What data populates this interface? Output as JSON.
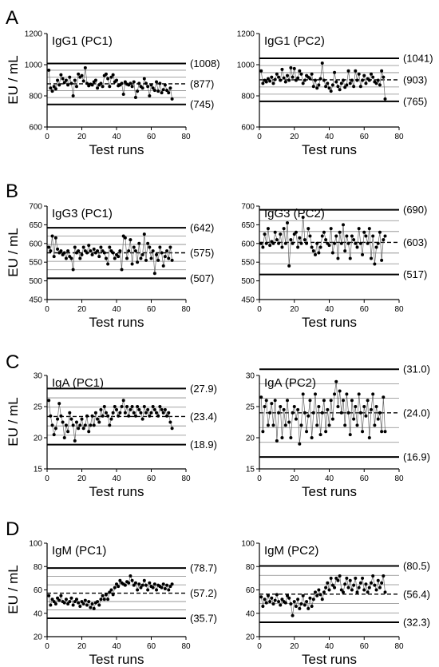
{
  "panels": [
    {
      "letter": "A",
      "ylabel": "EU / mL"
    },
    {
      "letter": "B",
      "ylabel": "EU / mL"
    },
    {
      "letter": "C",
      "ylabel": "EU / mL"
    },
    {
      "letter": "D",
      "ylabel": "EU / mL"
    }
  ],
  "chart_data": [
    {
      "type": "line",
      "panel": "A",
      "title": "IgG1 (PC1)",
      "xlabel": "Test runs",
      "xlim": [
        0,
        80
      ],
      "ylim": [
        600,
        1200
      ],
      "xticks": [
        0,
        20,
        40,
        60,
        80
      ],
      "yticks": [
        600,
        800,
        1000,
        1200
      ],
      "upper_limit": 1008,
      "mean": 877,
      "lower_limit": 745,
      "limit_labels": [
        "(1008)",
        "(877)",
        "(745)"
      ],
      "x": [
        1,
        2,
        3,
        4,
        5,
        6,
        7,
        8,
        9,
        10,
        11,
        12,
        13,
        14,
        15,
        16,
        17,
        18,
        19,
        20,
        21,
        22,
        23,
        24,
        25,
        26,
        27,
        28,
        29,
        30,
        31,
        32,
        33,
        34,
        35,
        36,
        37,
        38,
        39,
        40,
        41,
        42,
        43,
        44,
        45,
        46,
        47,
        48,
        49,
        50,
        51,
        52,
        53,
        54,
        55,
        56,
        57,
        58,
        59,
        60,
        61,
        62,
        63,
        64,
        65,
        66,
        67,
        68,
        69,
        70,
        71,
        72
      ],
      "y": [
        965,
        850,
        830,
        860,
        845,
        900,
        870,
        935,
        910,
        885,
        900,
        870,
        920,
        880,
        800,
        900,
        860,
        940,
        920,
        930,
        895,
        980,
        880,
        865,
        875,
        870,
        890,
        900,
        850,
        870,
        880,
        860,
        930,
        940,
        910,
        860,
        920,
        935,
        890,
        900,
        865,
        870,
        880,
        810,
        890,
        875,
        870,
        880,
        860,
        890,
        790,
        830,
        880,
        860,
        850,
        910,
        880,
        860,
        800,
        870,
        850,
        835,
        890,
        830,
        880,
        820,
        840,
        870,
        835,
        820,
        850,
        780
      ]
    },
    {
      "type": "line",
      "panel": "A",
      "title": "IgG1 (PC2)",
      "xlabel": "Test runs",
      "xlim": [
        0,
        80
      ],
      "ylim": [
        600,
        1200
      ],
      "xticks": [
        0,
        20,
        40,
        60,
        80
      ],
      "yticks": [
        600,
        800,
        1000,
        1200
      ],
      "upper_limit": 1041,
      "mean": 903,
      "lower_limit": 765,
      "limit_labels": [
        "(1041)",
        "(903)",
        "(765)"
      ],
      "x": [
        1,
        2,
        3,
        4,
        5,
        6,
        7,
        8,
        9,
        10,
        11,
        12,
        13,
        14,
        15,
        16,
        17,
        18,
        19,
        20,
        21,
        22,
        23,
        24,
        25,
        26,
        27,
        28,
        29,
        30,
        31,
        32,
        33,
        34,
        35,
        36,
        37,
        38,
        39,
        40,
        41,
        42,
        43,
        44,
        45,
        46,
        47,
        48,
        49,
        50,
        51,
        52,
        53,
        54,
        55,
        56,
        57,
        58,
        59,
        60,
        61,
        62,
        63,
        64,
        65,
        66,
        67,
        68,
        69,
        70,
        71,
        72
      ],
      "y": [
        960,
        880,
        900,
        890,
        910,
        895,
        920,
        880,
        905,
        940,
        920,
        900,
        970,
        915,
        890,
        930,
        900,
        980,
        920,
        975,
        900,
        915,
        960,
        940,
        880,
        900,
        930,
        920,
        910,
        940,
        860,
        900,
        850,
        870,
        910,
        1010,
        900,
        860,
        880,
        850,
        830,
        870,
        950,
        890,
        860,
        840,
        880,
        900,
        855,
        870,
        960,
        880,
        900,
        860,
        960,
        900,
        940,
        860,
        900,
        930,
        880,
        910,
        900,
        940,
        920,
        890,
        880,
        900,
        870,
        960,
        920,
        780
      ]
    },
    {
      "type": "line",
      "panel": "B",
      "title": "IgG3 (PC1)",
      "xlabel": "Test runs",
      "xlim": [
        0,
        80
      ],
      "ylim": [
        450,
        700
      ],
      "xticks": [
        0,
        20,
        40,
        60,
        80
      ],
      "yticks": [
        450,
        500,
        550,
        600,
        650,
        700
      ],
      "upper_limit": 642,
      "mean": 575,
      "lower_limit": 507,
      "limit_labels": [
        "(642)",
        "(575)",
        "(507)"
      ],
      "x": [
        1,
        2,
        3,
        4,
        5,
        6,
        7,
        8,
        9,
        10,
        11,
        12,
        13,
        14,
        15,
        16,
        17,
        18,
        19,
        20,
        21,
        22,
        23,
        24,
        25,
        26,
        27,
        28,
        29,
        30,
        31,
        32,
        33,
        34,
        35,
        36,
        37,
        38,
        39,
        40,
        41,
        42,
        43,
        44,
        45,
        46,
        47,
        48,
        49,
        50,
        51,
        52,
        53,
        54,
        55,
        56,
        57,
        58,
        59,
        60,
        61,
        62,
        63,
        64,
        65,
        66,
        67,
        68,
        69,
        70,
        71,
        72
      ],
      "y": [
        590,
        580,
        620,
        565,
        615,
        585,
        575,
        580,
        570,
        575,
        560,
        580,
        565,
        560,
        530,
        590,
        575,
        580,
        560,
        570,
        590,
        580,
        575,
        595,
        580,
        570,
        585,
        575,
        580,
        565,
        590,
        580,
        575,
        560,
        545,
        590,
        580,
        575,
        560,
        570,
        565,
        580,
        530,
        620,
        615,
        560,
        580,
        610,
        545,
        590,
        580,
        550,
        600,
        560,
        570,
        625,
        555,
        600,
        590,
        560,
        580,
        520,
        570,
        555,
        590,
        575,
        540,
        565,
        580,
        560,
        590,
        555
      ]
    },
    {
      "type": "line",
      "panel": "B",
      "title": "IgG3 (PC2)",
      "xlabel": "Test runs",
      "xlim": [
        0,
        80
      ],
      "ylim": [
        450,
        700
      ],
      "xticks": [
        0,
        20,
        40,
        60,
        80
      ],
      "yticks": [
        450,
        500,
        550,
        600,
        650,
        700
      ],
      "upper_limit": 690,
      "mean": 603,
      "lower_limit": 517,
      "limit_labels": [
        "(690)",
        "(603)",
        "(517)"
      ],
      "x": [
        1,
        2,
        3,
        4,
        5,
        6,
        7,
        8,
        9,
        10,
        11,
        12,
        13,
        14,
        15,
        16,
        17,
        18,
        19,
        20,
        21,
        22,
        23,
        24,
        25,
        26,
        27,
        28,
        29,
        30,
        31,
        32,
        33,
        34,
        35,
        36,
        37,
        38,
        39,
        40,
        41,
        42,
        43,
        44,
        45,
        46,
        47,
        48,
        49,
        50,
        51,
        52,
        53,
        54,
        55,
        56,
        57,
        58,
        59,
        60,
        61,
        62,
        63,
        64,
        65,
        66,
        67,
        68,
        69,
        70,
        71,
        72
      ],
      "y": [
        600,
        590,
        625,
        600,
        640,
        595,
        605,
        600,
        630,
        610,
        600,
        625,
        590,
        640,
        600,
        655,
        540,
        610,
        600,
        625,
        630,
        590,
        615,
        600,
        670,
        610,
        600,
        640,
        620,
        590,
        580,
        570,
        600,
        575,
        590,
        620,
        630,
        610,
        600,
        595,
        640,
        575,
        600,
        620,
        560,
        630,
        600,
        650,
        580,
        620,
        600,
        560,
        620,
        610,
        600,
        590,
        640,
        600,
        570,
        630,
        620,
        600,
        640,
        560,
        620,
        545,
        590,
        600,
        630,
        555,
        610,
        620
      ]
    },
    {
      "type": "line",
      "panel": "C",
      "title": "IgA (PC1)",
      "xlabel": "Test runs",
      "xlim": [
        0,
        80
      ],
      "ylim": [
        15,
        30
      ],
      "xticks": [
        0,
        20,
        40,
        60,
        80
      ],
      "yticks": [
        15,
        20,
        25,
        30
      ],
      "upper_limit": 27.9,
      "mean": 23.4,
      "lower_limit": 18.9,
      "limit_labels": [
        "(27.9)",
        "(23.4)",
        "(18.9)"
      ],
      "x": [
        1,
        2,
        3,
        4,
        5,
        6,
        7,
        8,
        9,
        10,
        11,
        12,
        13,
        14,
        15,
        16,
        17,
        18,
        19,
        20,
        21,
        22,
        23,
        24,
        25,
        26,
        27,
        28,
        29,
        30,
        31,
        32,
        33,
        34,
        35,
        36,
        37,
        38,
        39,
        40,
        41,
        42,
        43,
        44,
        45,
        46,
        47,
        48,
        49,
        50,
        51,
        52,
        53,
        54,
        55,
        56,
        57,
        58,
        59,
        60,
        61,
        62,
        63,
        64,
        65,
        66,
        67,
        68,
        69,
        70,
        71,
        72
      ],
      "y": [
        26,
        23.5,
        22,
        20.5,
        21.5,
        23,
        25.5,
        23.5,
        22.5,
        20,
        22,
        21,
        24,
        23,
        22,
        19.5,
        22.5,
        21.5,
        22,
        23,
        21.5,
        22,
        23.5,
        21,
        22,
        23.5,
        22,
        24,
        23,
        22.5,
        24.5,
        23.5,
        25,
        24,
        23.5,
        22,
        23,
        24,
        25,
        24.5,
        23.5,
        24,
        25,
        26,
        24,
        25,
        23.5,
        24.5,
        25,
        24,
        23.5,
        25,
        24.5,
        24,
        23,
        25,
        24,
        24.5,
        23.5,
        24,
        25,
        24.5,
        24,
        23.5,
        25,
        24.5,
        24,
        24.5,
        23.5,
        24,
        22.5,
        21.5
      ]
    },
    {
      "type": "line",
      "panel": "C",
      "title": "IgA (PC2)",
      "xlabel": "Test runs",
      "xlim": [
        0,
        80
      ],
      "ylim": [
        15,
        30
      ],
      "xticks": [
        0,
        20,
        40,
        60,
        80
      ],
      "yticks": [
        15,
        20,
        25,
        30
      ],
      "upper_limit": 31.0,
      "mean": 24.0,
      "lower_limit": 16.9,
      "limit_labels": [
        "(31.0)",
        "(24.0)",
        "(16.9)"
      ],
      "x": [
        1,
        2,
        3,
        4,
        5,
        6,
        7,
        8,
        9,
        10,
        11,
        12,
        13,
        14,
        15,
        16,
        17,
        18,
        19,
        20,
        21,
        22,
        23,
        24,
        25,
        26,
        27,
        28,
        29,
        30,
        31,
        32,
        33,
        34,
        35,
        36,
        37,
        38,
        39,
        40,
        41,
        42,
        43,
        44,
        45,
        46,
        47,
        48,
        49,
        50,
        51,
        52,
        53,
        54,
        55,
        56,
        57,
        58,
        59,
        60,
        61,
        62,
        63,
        64,
        65,
        66,
        67,
        68,
        69,
        70,
        71,
        72
      ],
      "y": [
        26.5,
        21,
        25,
        26,
        22,
        24,
        25.5,
        22,
        26,
        19.5,
        24,
        25,
        20,
        24.5,
        22,
        26,
        22.5,
        20,
        24,
        25,
        23,
        24.5,
        19,
        22,
        27,
        24,
        21,
        23.5,
        26,
        20,
        24,
        27,
        22,
        25,
        20.5,
        24,
        26,
        21,
        24.5,
        22,
        26,
        23,
        27,
        29,
        25,
        27.5,
        24,
        26,
        22,
        27,
        24,
        20.5,
        26,
        23,
        25,
        22,
        27,
        24,
        21,
        25,
        23.5,
        26,
        20,
        24.5,
        27,
        22,
        25,
        23,
        24,
        21,
        26.5,
        21
      ]
    },
    {
      "type": "line",
      "panel": "D",
      "title": "IgM (PC1)",
      "xlabel": "Test runs",
      "xlim": [
        0,
        80
      ],
      "ylim": [
        20,
        100
      ],
      "xticks": [
        0,
        20,
        40,
        60,
        80
      ],
      "yticks": [
        20,
        40,
        60,
        80,
        100
      ],
      "upper_limit": 78.7,
      "mean": 57.2,
      "lower_limit": 35.7,
      "limit_labels": [
        "(78.7)",
        "(57.2)",
        "(35.7)"
      ],
      "x": [
        1,
        2,
        3,
        4,
        5,
        6,
        7,
        8,
        9,
        10,
        11,
        12,
        13,
        14,
        15,
        16,
        17,
        18,
        19,
        20,
        21,
        22,
        23,
        24,
        25,
        26,
        27,
        28,
        29,
        30,
        31,
        32,
        33,
        34,
        35,
        36,
        37,
        38,
        39,
        40,
        41,
        42,
        43,
        44,
        45,
        46,
        47,
        48,
        49,
        50,
        51,
        52,
        53,
        54,
        55,
        56,
        57,
        58,
        59,
        60,
        61,
        62,
        63,
        64,
        65,
        66,
        67,
        68,
        69,
        70,
        71,
        72
      ],
      "y": [
        55,
        47,
        52,
        50,
        48,
        53,
        51,
        55,
        50,
        49,
        52,
        48,
        50,
        53,
        47,
        50,
        52,
        49,
        46,
        50,
        48,
        51,
        47,
        50,
        45,
        48,
        44,
        49,
        50,
        47,
        52,
        55,
        52,
        56,
        52,
        58,
        60,
        56,
        62,
        65,
        63,
        68,
        66,
        65,
        64,
        67,
        66,
        72,
        68,
        64,
        66,
        60,
        65,
        62,
        64,
        68,
        64,
        60,
        66,
        63,
        62,
        65,
        60,
        64,
        63,
        62,
        65,
        61,
        64,
        60,
        63,
        65
      ]
    },
    {
      "type": "line",
      "panel": "D",
      "title": "IgM (PC2)",
      "xlabel": "Test runs",
      "xlim": [
        0,
        80
      ],
      "ylim": [
        20,
        100
      ],
      "xticks": [
        0,
        20,
        40,
        60,
        80
      ],
      "yticks": [
        20,
        40,
        60,
        80,
        100
      ],
      "upper_limit": 80.5,
      "mean": 56.4,
      "lower_limit": 32.3,
      "limit_labels": [
        "(80.5)",
        "(56.4)",
        "(32.3)"
      ],
      "x": [
        1,
        2,
        3,
        4,
        5,
        6,
        7,
        8,
        9,
        10,
        11,
        12,
        13,
        14,
        15,
        16,
        17,
        18,
        19,
        20,
        21,
        22,
        23,
        24,
        25,
        26,
        27,
        28,
        29,
        30,
        31,
        32,
        33,
        34,
        35,
        36,
        37,
        38,
        39,
        40,
        41,
        42,
        43,
        44,
        45,
        46,
        47,
        48,
        49,
        50,
        51,
        52,
        53,
        54,
        55,
        56,
        57,
        58,
        59,
        60,
        61,
        62,
        63,
        64,
        65,
        66,
        67,
        68,
        69,
        70,
        71,
        72
      ],
      "y": [
        54,
        46,
        52,
        49,
        55,
        50,
        53,
        48,
        51,
        56,
        50,
        47,
        52,
        50,
        49,
        55,
        53,
        48,
        38,
        50,
        46,
        52,
        44,
        48,
        55,
        47,
        50,
        44,
        53,
        46,
        52,
        58,
        55,
        60,
        56,
        52,
        58,
        62,
        66,
        60,
        70,
        64,
        62,
        70,
        68,
        72,
        60,
        58,
        65,
        70,
        62,
        68,
        60,
        64,
        70,
        58,
        62,
        66,
        70,
        60,
        65,
        58,
        62,
        66,
        72,
        64,
        60,
        68,
        62,
        66,
        72,
        58
      ]
    }
  ]
}
